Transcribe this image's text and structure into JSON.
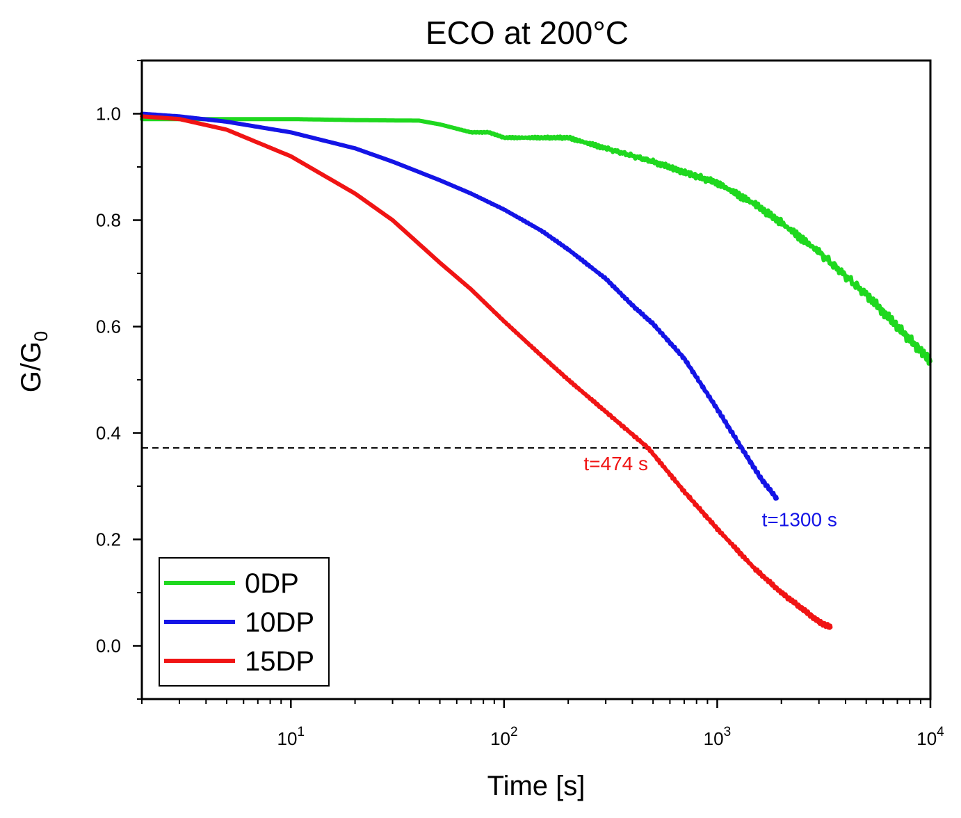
{
  "chart_data": {
    "type": "line",
    "title": "ECO at 200°C",
    "xlabel": "Time [s]",
    "ylabel_main": "G/G",
    "ylabel_sub": "0",
    "xscale": "log",
    "xlim": [
      2,
      10000
    ],
    "ylim": [
      -0.1,
      1.1
    ],
    "x_ticks": [
      {
        "value": 10,
        "base": "10",
        "exp": "1"
      },
      {
        "value": 100,
        "base": "10",
        "exp": "2"
      },
      {
        "value": 1000,
        "base": "10",
        "exp": "3"
      },
      {
        "value": 10000,
        "base": "10",
        "exp": "4"
      }
    ],
    "y_ticks": [
      {
        "value": 0.0,
        "label": "0.0"
      },
      {
        "value": 0.2,
        "label": "0.2"
      },
      {
        "value": 0.4,
        "label": "0.4"
      },
      {
        "value": 0.6,
        "label": "0.6"
      },
      {
        "value": 0.8,
        "label": "0.8"
      },
      {
        "value": 1.0,
        "label": "1.0"
      }
    ],
    "reference_line": {
      "y": 0.372,
      "style": "dashed",
      "color": "#000000"
    },
    "legend_position": "bottom-left",
    "series": [
      {
        "name": "0DP",
        "color": "#1fd81f",
        "x": [
          2,
          5,
          10,
          20,
          40,
          50,
          70,
          85,
          100,
          150,
          200,
          300,
          500,
          700,
          1000,
          1500,
          2000,
          3000,
          5000,
          7000,
          10000
        ],
        "y": [
          0.99,
          0.99,
          0.99,
          0.988,
          0.987,
          0.98,
          0.965,
          0.965,
          0.955,
          0.955,
          0.955,
          0.935,
          0.91,
          0.89,
          0.87,
          0.83,
          0.795,
          0.74,
          0.66,
          0.6,
          0.535
        ]
      },
      {
        "name": "10DP",
        "color": "#1414e6",
        "x": [
          2,
          3,
          5,
          10,
          20,
          30,
          50,
          70,
          100,
          150,
          200,
          300,
          400,
          500,
          700,
          1000,
          1300,
          1600,
          1900
        ],
        "y": [
          1.0,
          0.995,
          0.985,
          0.965,
          0.935,
          0.91,
          0.875,
          0.85,
          0.82,
          0.78,
          0.745,
          0.69,
          0.64,
          0.605,
          0.54,
          0.445,
          0.372,
          0.315,
          0.277
        ]
      },
      {
        "name": "15DP",
        "color": "#f01414",
        "x": [
          2,
          3,
          5,
          10,
          20,
          30,
          50,
          70,
          100,
          150,
          200,
          300,
          474,
          700,
          1000,
          1500,
          2000,
          2500,
          3000,
          3400
        ],
        "y": [
          0.995,
          0.99,
          0.97,
          0.92,
          0.85,
          0.8,
          0.72,
          0.67,
          0.61,
          0.545,
          0.5,
          0.44,
          0.372,
          0.29,
          0.22,
          0.145,
          0.1,
          0.07,
          0.045,
          0.035
        ]
      }
    ],
    "annotations": [
      {
        "text": "t=474 s",
        "x": 474,
        "y": 0.33,
        "color": "#f01414",
        "anchor": "end"
      },
      {
        "text": "t=1300 s",
        "x": 1620,
        "y": 0.225,
        "color": "#1414e6",
        "anchor": "start"
      }
    ]
  }
}
